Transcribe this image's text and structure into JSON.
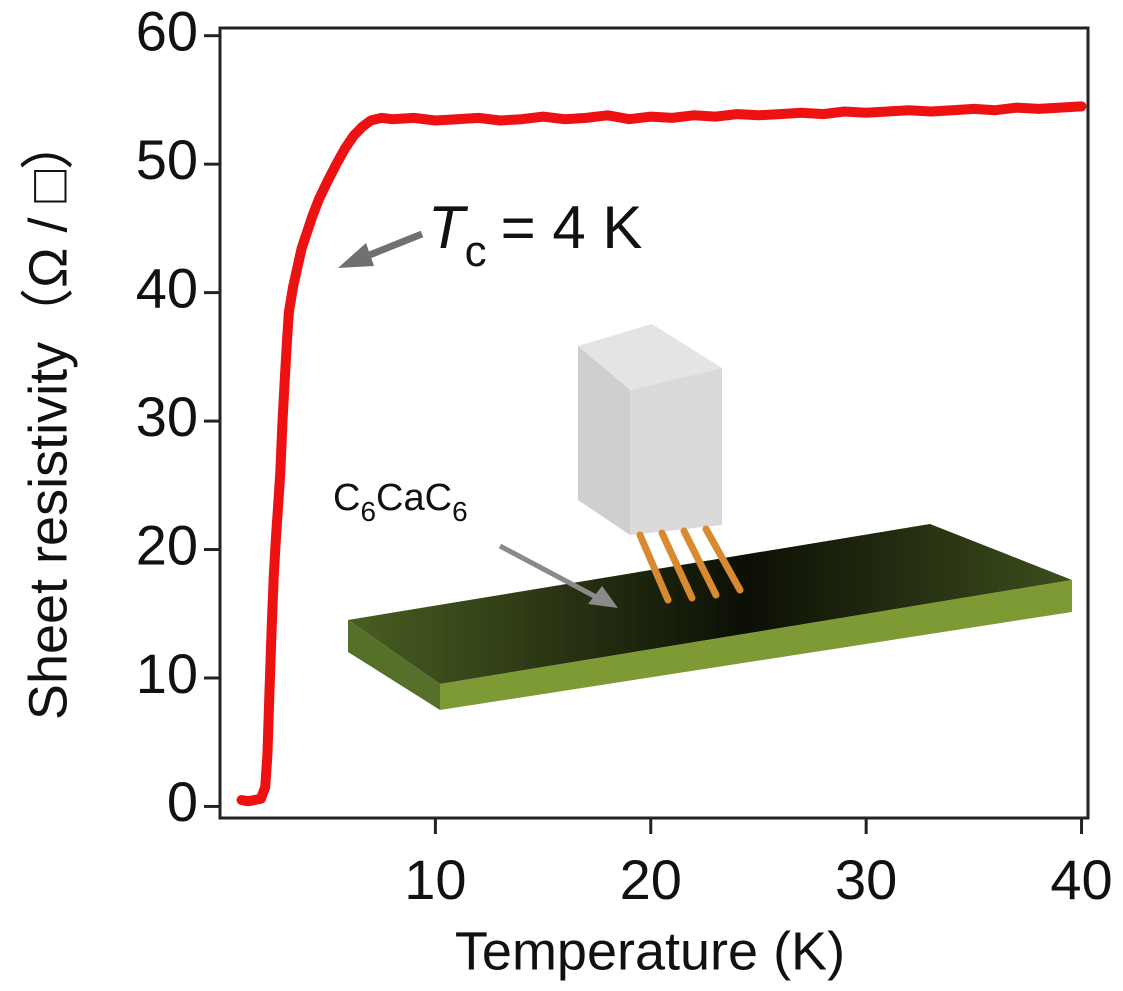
{
  "chart_data": {
    "type": "line",
    "x_label": "Temperature (K)",
    "y_label": "Sheet resistivity（Ω / □）",
    "annotation": {
      "symbol": "T",
      "subscript": "c",
      "text": "= 4 K"
    },
    "inset_label": [
      "C",
      "6",
      "CaC",
      "6"
    ],
    "xlim": [
      0,
      40.3
    ],
    "ylim": [
      -0.9,
      60.6
    ],
    "xticks": [
      10,
      20,
      30,
      40
    ],
    "yticks": [
      0,
      10,
      20,
      30,
      40,
      50,
      60
    ],
    "series": [
      {
        "color": "#ee1111",
        "x": [
          1.0,
          1.3,
          1.6,
          1.9,
          2.1,
          2.2,
          2.3,
          2.4,
          2.5,
          2.6,
          2.7,
          2.8,
          2.9,
          3.0,
          3.1,
          3.2,
          3.4,
          3.6,
          3.8,
          4.0,
          4.3,
          4.6,
          5.0,
          5.4,
          5.8,
          6.2,
          6.6,
          7.0,
          7.5,
          8,
          9,
          10,
          11,
          12,
          13,
          14,
          15,
          16,
          17,
          18,
          19,
          20,
          21,
          22,
          23,
          24,
          25,
          26,
          27,
          28,
          29,
          30,
          31,
          32,
          33,
          34,
          35,
          36,
          37,
          38,
          39,
          40
        ],
        "values": [
          0.5,
          0.4,
          0.5,
          0.6,
          1.5,
          4,
          9,
          14,
          18,
          21,
          23.5,
          26,
          30,
          33,
          36,
          38.5,
          40.5,
          42,
          43.5,
          44.5,
          46,
          47.3,
          48.7,
          50,
          51.2,
          52.2,
          52.9,
          53.4,
          53.6,
          53.5,
          53.6,
          53.4,
          53.5,
          53.6,
          53.4,
          53.5,
          53.7,
          53.5,
          53.6,
          53.8,
          53.5,
          53.7,
          53.6,
          53.8,
          53.7,
          53.9,
          53.8,
          53.9,
          54.0,
          53.9,
          54.1,
          54.0,
          54.1,
          54.2,
          54.1,
          54.2,
          54.3,
          54.2,
          54.4,
          54.3,
          54.4,
          54.5
        ]
      }
    ]
  }
}
